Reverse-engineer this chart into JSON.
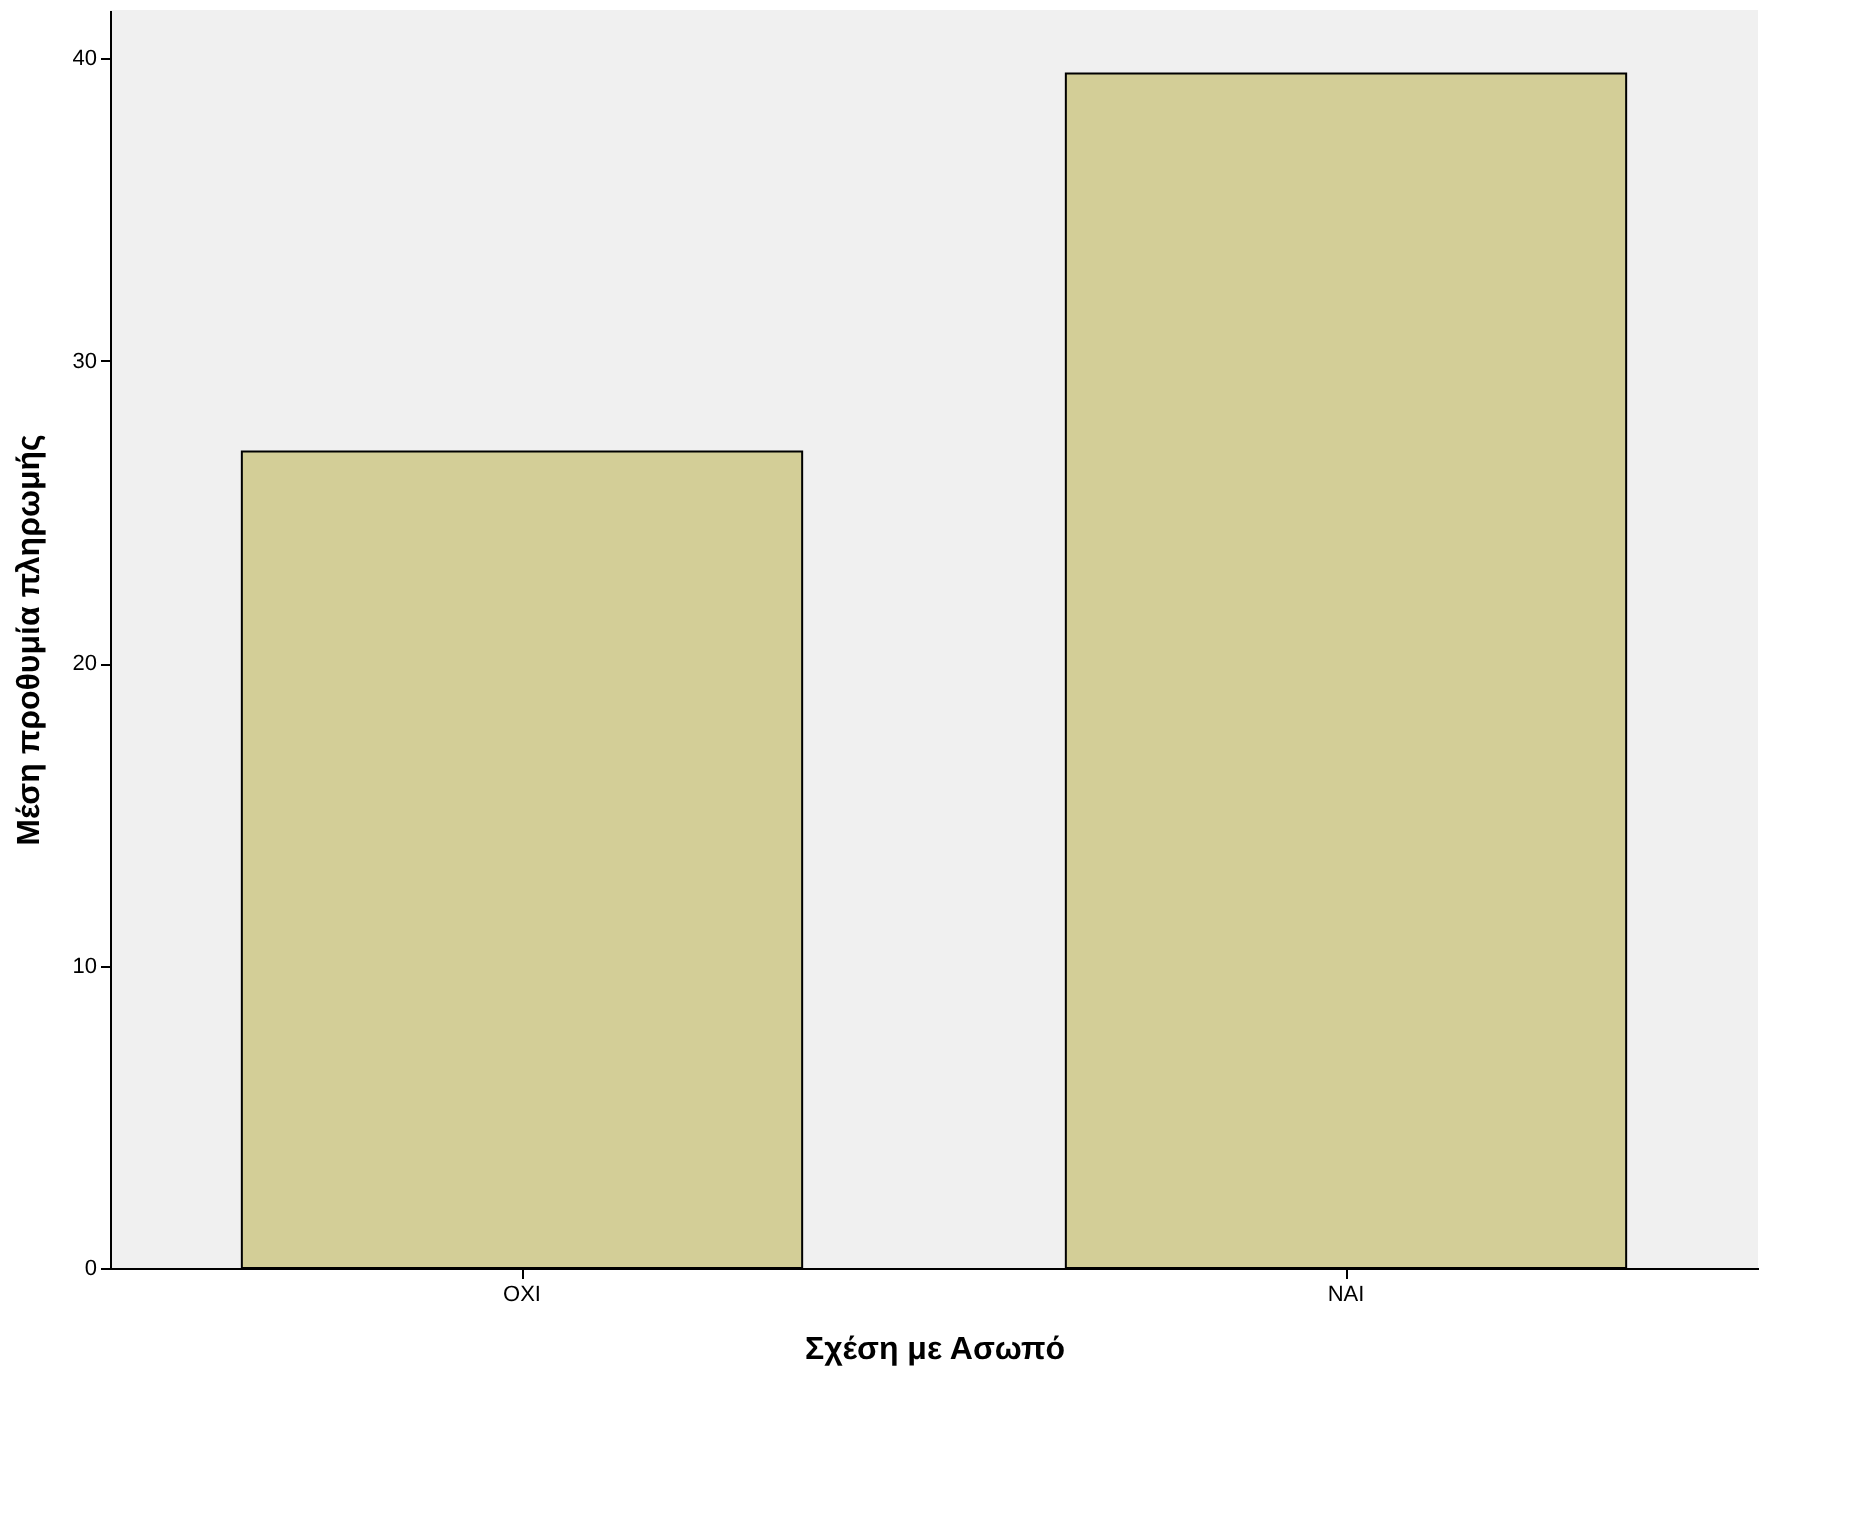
{
  "chart_data": {
    "type": "bar",
    "xlabel": "Σχέση με Ασωπό",
    "ylabel": "Μέση προθυμία πληρωμής",
    "categories": [
      "OXI",
      "NAI"
    ],
    "series": [
      {
        "color": "#d3ce97",
        "values": [
          27.0,
          39.5
        ]
      }
    ],
    "ylim": [
      0,
      41.6
    ],
    "yticks": [
      0,
      10,
      20,
      30,
      40
    ],
    "grid": false
  }
}
